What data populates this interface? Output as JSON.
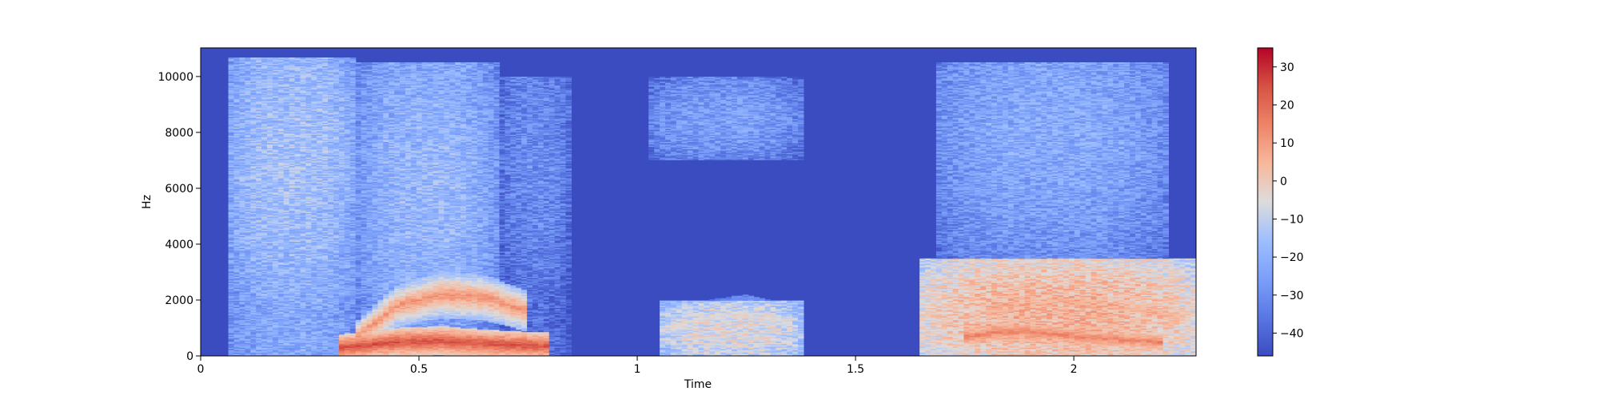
{
  "chart_data": {
    "type": "heatmap",
    "subtype": "spectrogram",
    "title": "",
    "xlabel": "Time",
    "ylabel": "Hz",
    "xlim": [
      0,
      2.28
    ],
    "ylim": [
      0,
      11025
    ],
    "x_ticks": [
      0,
      0.5,
      1,
      1.5,
      2
    ],
    "x_tick_labels": [
      "0",
      "0.5",
      "1",
      "1.5",
      "2"
    ],
    "y_ticks": [
      0,
      2000,
      4000,
      6000,
      8000,
      10000
    ],
    "y_tick_labels": [
      "0",
      "2000",
      "4000",
      "6000",
      "8000",
      "10000"
    ],
    "colormap": "coolwarm",
    "colorbar": {
      "range": [
        -46,
        35
      ],
      "ticks": [
        -40,
        -30,
        -20,
        -10,
        0,
        10,
        20,
        30
      ],
      "tick_labels": [
        "−40",
        "−30",
        "−20",
        "−10",
        "0",
        "10",
        "20",
        "30"
      ]
    },
    "background_level_db": -46,
    "energy_regions": [
      {
        "t": [
          0.06,
          0.36
        ],
        "hz": [
          0,
          10700
        ],
        "peak_db": -15,
        "center_hz": 7000
      },
      {
        "t": [
          0.36,
          0.68
        ],
        "hz": [
          0,
          10500
        ],
        "peak_db": -18,
        "center_hz": 6000
      },
      {
        "t": [
          0.68,
          0.85
        ],
        "hz": [
          0,
          10000
        ],
        "peak_db": -30,
        "center_hz": 7000
      },
      {
        "t": [
          1.02,
          1.38
        ],
        "hz": [
          7000,
          10000
        ],
        "peak_db": -25,
        "center_hz": 8500
      },
      {
        "t": [
          1.05,
          1.38
        ],
        "hz": [
          0,
          2000
        ],
        "peak_db": -5,
        "center_hz": 900
      },
      {
        "t": [
          1.68,
          2.22
        ],
        "hz": [
          2000,
          10500
        ],
        "peak_db": -22,
        "center_hz": 8000
      },
      {
        "t": [
          1.65,
          2.28
        ],
        "hz": [
          0,
          3500
        ],
        "peak_db": 5,
        "center_hz": 1500
      }
    ],
    "formant_tracks": [
      {
        "t": [
          0.35,
          0.45,
          0.55,
          0.65,
          0.75
        ],
        "hz": [
          600,
          1800,
          2200,
          2100,
          1600
        ],
        "level_db": 12
      },
      {
        "t": [
          0.32,
          0.45,
          0.55,
          0.65,
          0.8
        ],
        "hz": [
          300,
          500,
          550,
          450,
          350
        ],
        "level_db": 25
      },
      {
        "t": [
          1.05,
          1.15,
          1.25,
          1.35
        ],
        "hz": [
          900,
          1300,
          1500,
          1200
        ],
        "level_db": -5
      },
      {
        "t": [
          1.75,
          1.85,
          1.95,
          2.05,
          2.2
        ],
        "hz": [
          700,
          900,
          800,
          650,
          500
        ],
        "level_db": 15
      },
      {
        "t": [
          1.8,
          1.95,
          2.1,
          2.25
        ],
        "hz": [
          1600,
          2000,
          1800,
          1400
        ],
        "level_db": 5
      }
    ]
  }
}
